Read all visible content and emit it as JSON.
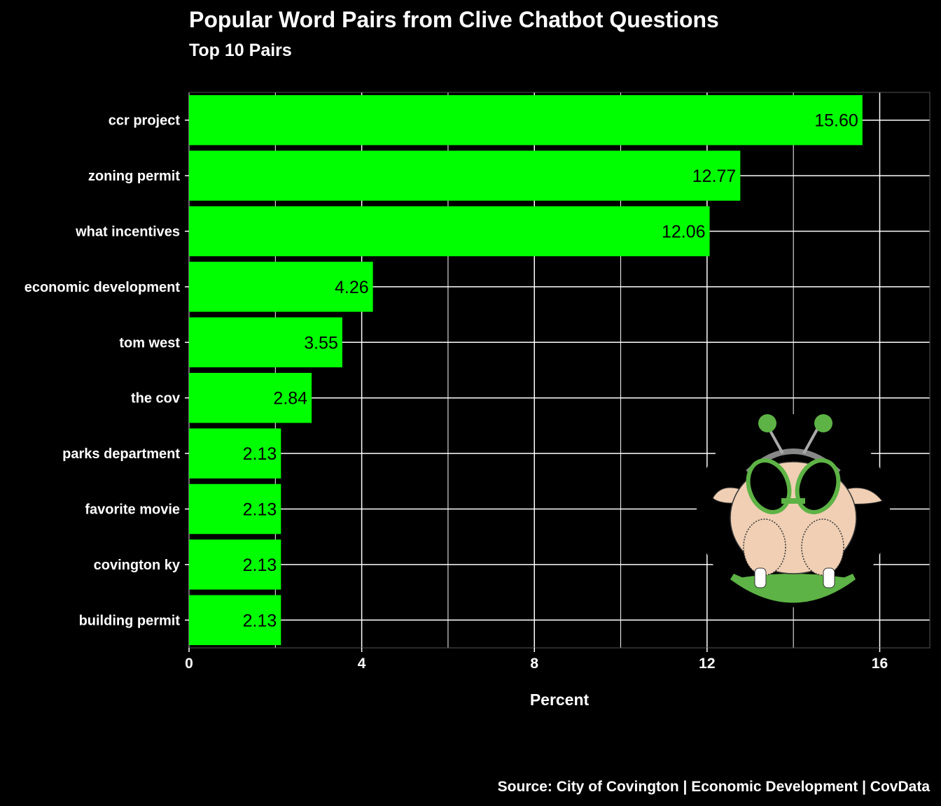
{
  "header": {
    "title": "Popular Word Pairs from Clive Chatbot Questions",
    "subtitle": "Top 10 Pairs"
  },
  "footer": {
    "caption": "Source: City of Covington | Economic Development | CovData"
  },
  "colors": {
    "background": "#000000",
    "bar": "#00ff00",
    "grid": "#ffffff",
    "text": "#ffffff",
    "value_label": "#000000"
  },
  "mascot": {
    "icon": "chicken-mascot-with-antenna-headband-and-green-glasses"
  },
  "chart_data": {
    "type": "bar",
    "orientation": "horizontal",
    "title": "Popular Word Pairs from Clive Chatbot Questions",
    "subtitle": "Top 10 Pairs",
    "xlabel": "Percent",
    "ylabel": "",
    "categories": [
      "ccr project",
      "zoning permit",
      "what incentives",
      "economic development",
      "tom west",
      "the cov",
      "parks department",
      "favorite movie",
      "covington ky",
      "building permit"
    ],
    "values": [
      15.6,
      12.77,
      12.06,
      4.26,
      3.55,
      2.84,
      2.13,
      2.13,
      2.13,
      2.13
    ],
    "value_labels": [
      "15.60",
      "12.77",
      "12.06",
      "4.26",
      "3.55",
      "2.84",
      "2.13",
      "2.13",
      "2.13",
      "2.13"
    ],
    "xlim": [
      0,
      17.16
    ],
    "xticks": [
      0,
      4,
      8,
      12,
      16
    ],
    "xtick_labels": [
      "0",
      "4",
      "8",
      "12",
      "16"
    ],
    "grid": true,
    "legend": "none"
  }
}
